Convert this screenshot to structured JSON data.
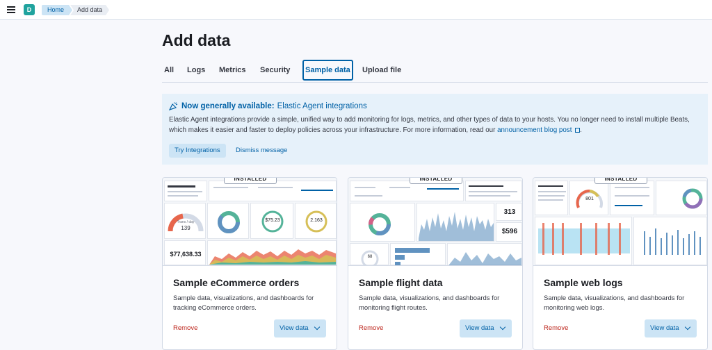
{
  "header": {
    "space_initial": "D",
    "breadcrumbs": [
      "Home",
      "Add data"
    ]
  },
  "page": {
    "title": "Add data"
  },
  "tabs": [
    {
      "label": "All",
      "selected": false
    },
    {
      "label": "Logs",
      "selected": false
    },
    {
      "label": "Metrics",
      "selected": false
    },
    {
      "label": "Security",
      "selected": false
    },
    {
      "label": "Sample data",
      "selected": true
    },
    {
      "label": "Upload file",
      "selected": false
    }
  ],
  "callout": {
    "title_strong": "Now generally available:",
    "title_rest": "Elastic Agent integrations",
    "body": "Elastic Agent integrations provide a simple, unified way to add monitoring for logs, metrics, and other types of data to your hosts. You no longer need to install multiple Beats, which makes it easier and faster to deploy policies across your infrastructure. For more information, read our",
    "link_text": "announcement blog post",
    "body_end": ".",
    "try_label": "Try Integrations",
    "dismiss_label": "Dismiss message"
  },
  "cards": [
    {
      "badge": "INSTALLED",
      "title": "Sample eCommerce orders",
      "description": "Sample data, visualizations, and dashboards for tracking eCommerce orders.",
      "remove_label": "Remove",
      "view_label": "View data",
      "preview": {
        "gauge_text": "Trans / day",
        "gauge_value": "139",
        "metric": "$77,638.33",
        "donut_value": "$75.23",
        "donut2_value": "2.163"
      }
    },
    {
      "badge": "INSTALLED",
      "title": "Sample flight data",
      "description": "Sample data, visualizations, and dashboards for monitoring flight routes.",
      "remove_label": "Remove",
      "view_label": "View data",
      "preview": {
        "metric1": "313",
        "metric2": "$596",
        "small_value": "68"
      }
    },
    {
      "badge": "INSTALLED",
      "title": "Sample web logs",
      "description": "Sample data, visualizations, and dashboards for monitoring web logs.",
      "remove_label": "Remove",
      "view_label": "View data",
      "preview": {
        "gauge_value": "801"
      }
    }
  ],
  "colors": {
    "accent": "#0061a6",
    "accent_light": "#cce4f5",
    "danger": "#bd271e",
    "callout_bg": "#e6f1fa",
    "avatar": "#20a39e"
  }
}
